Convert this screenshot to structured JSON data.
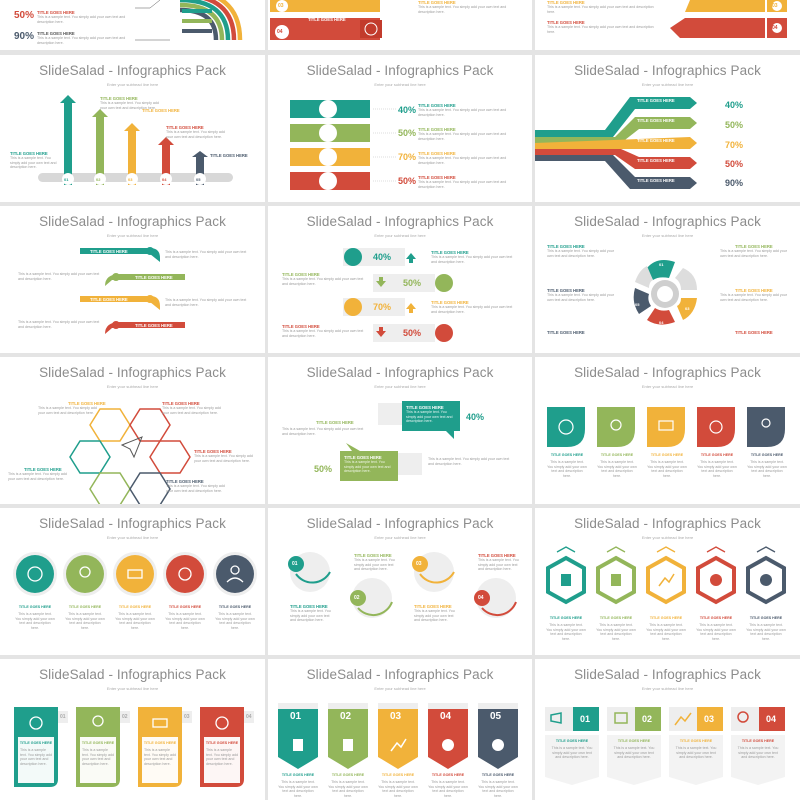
{
  "slide_title": "SlideSalad - Infographics Pack",
  "slide_subtitle": "Enter your subhead line here",
  "item_title": "TITLE GOES HERE",
  "item_text": "This is a sample text. You simply add your own text and description here.",
  "colors": {
    "teal": "#1f9e8c",
    "green": "#93b65a",
    "yellow": "#f1b23a",
    "red": "#d24b3b",
    "slate": "#4b5a6c",
    "gray_bg": "#e4e4e4"
  },
  "numbers": [
    "01",
    "02",
    "03",
    "04",
    "05"
  ],
  "top_row": {
    "pct_a": "50%",
    "pct_b": "90%",
    "badge_a": "03",
    "badge_b": "04"
  },
  "percents": {
    "p40": "40%",
    "p50": "50%",
    "p70": "70%",
    "p90": "90%"
  },
  "icons": [
    "cloud-icon",
    "location-pin-icon",
    "cart-icon",
    "gear-icon",
    "user-icon"
  ]
}
